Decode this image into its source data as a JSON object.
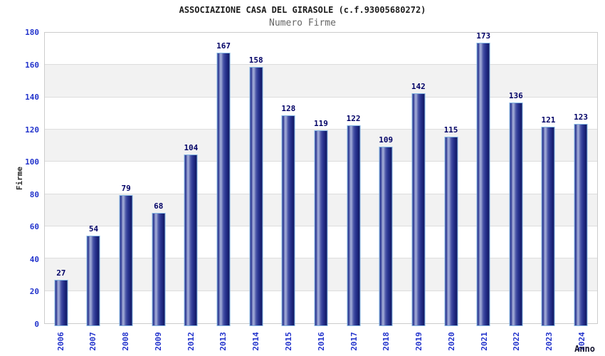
{
  "chart_data": {
    "type": "bar",
    "title": "ASSOCIAZIONE CASA DEL GIRASOLE (c.f.93005680272)",
    "subtitle": "Numero Firme",
    "xlabel": "Anno",
    "ylabel": "Firme",
    "categories": [
      "2006",
      "2007",
      "2008",
      "2009",
      "2012",
      "2013",
      "2014",
      "2015",
      "2016",
      "2017",
      "2018",
      "2019",
      "2020",
      "2021",
      "2022",
      "2023",
      "2024"
    ],
    "values": [
      27,
      54,
      79,
      68,
      104,
      167,
      158,
      128,
      119,
      122,
      109,
      142,
      115,
      173,
      136,
      121,
      123
    ],
    "ylim": [
      0,
      180
    ],
    "ytick_step": 20,
    "grid": true,
    "legend": false,
    "band_colors": [
      "#ffffff",
      "#f2f2f2"
    ],
    "colors": {
      "bar_fill_dark": "#1b2478",
      "bar_fill_light": "#a7b0da",
      "bar_border": "#82b4e2",
      "value_label": "#000066",
      "axis_tick_label": "#2233cc",
      "title": "#1c1c1c",
      "subtitle": "#666666",
      "plot_border": "#cccccc",
      "gridline": "#dddddd"
    }
  }
}
